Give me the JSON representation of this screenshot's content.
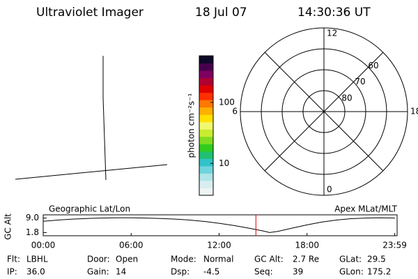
{
  "header": {
    "title": "Ultraviolet Imager",
    "date": "18 Jul 07",
    "time": "14:30:36 UT"
  },
  "colorbar": {
    "label": "photon cm⁻²s⁻¹",
    "scale": "log",
    "lim": [
      3,
      580
    ],
    "ticks": [
      10,
      100
    ],
    "colors": [
      "#eef4f4",
      "#d8eeee",
      "#b0e4e8",
      "#70d4dc",
      "#30c4c8",
      "#20c070",
      "#30cc20",
      "#80dc20",
      "#c8ec30",
      "#f0f870",
      "#ffe000",
      "#ffb000",
      "#ff7800",
      "#ff3000",
      "#e00000",
      "#b00030",
      "#800060",
      "#48004c",
      "#100828"
    ]
  },
  "polar": {
    "rlim": [
      90,
      50
    ],
    "rings": [
      80,
      70,
      60
    ],
    "hours": [
      12,
      6,
      0,
      18
    ]
  },
  "chart_data": {
    "type": "line",
    "left_label": "Geographic Lat/Lon",
    "right_label": "Apex MLat/MLT",
    "y_label": "GC Alt",
    "x": [
      0,
      1,
      2,
      3,
      4,
      5,
      6,
      7,
      8,
      9,
      10,
      11,
      12,
      13,
      14,
      15,
      15.45,
      16,
      17,
      18,
      19,
      20,
      21,
      22,
      23,
      24
    ],
    "values": [
      7.4,
      8.0,
      8.5,
      8.8,
      9.0,
      9.1,
      9.1,
      9.0,
      8.8,
      8.5,
      8.0,
      7.3,
      6.4,
      5.3,
      4.0,
      2.6,
      1.8,
      2.4,
      4.0,
      5.6,
      7.0,
      8.0,
      8.7,
      9.0,
      9.1,
      9.0
    ],
    "color": "#000000",
    "marker_x": 14.51,
    "marker_color": "#e00000",
    "xlim": [
      0,
      24
    ],
    "ylim": [
      0.2,
      10.6
    ],
    "xticks": [
      {
        "value": 0,
        "label": "00:00"
      },
      {
        "value": 6,
        "label": "06:00"
      },
      {
        "value": 12,
        "label": "12:00"
      },
      {
        "value": 18,
        "label": "18:00"
      },
      {
        "value": 23.98,
        "label": "23:59"
      }
    ],
    "yticks": [
      {
        "value": 9.0,
        "label": "9.0"
      },
      {
        "value": 1.8,
        "label": "1.8"
      }
    ]
  },
  "footer": {
    "rows": [
      [
        {
          "label": "Flt:",
          "value": "LBHL"
        },
        {
          "label": "Door:",
          "value": "Open"
        },
        {
          "label": "Mode:",
          "value": "Normal"
        },
        {
          "label": "GC Alt:",
          "value": "2.7 Re"
        },
        {
          "label": "GLat:",
          "value": "29.5"
        }
      ],
      [
        {
          "label": "IP:",
          "value": "36.0"
        },
        {
          "label": "Gain:",
          "value": "14"
        },
        {
          "label": "Dsp:",
          "value": "-4.5"
        },
        {
          "label": "Seq:",
          "value": "39"
        },
        {
          "label": "GLon:",
          "value": "175.2"
        }
      ]
    ]
  }
}
